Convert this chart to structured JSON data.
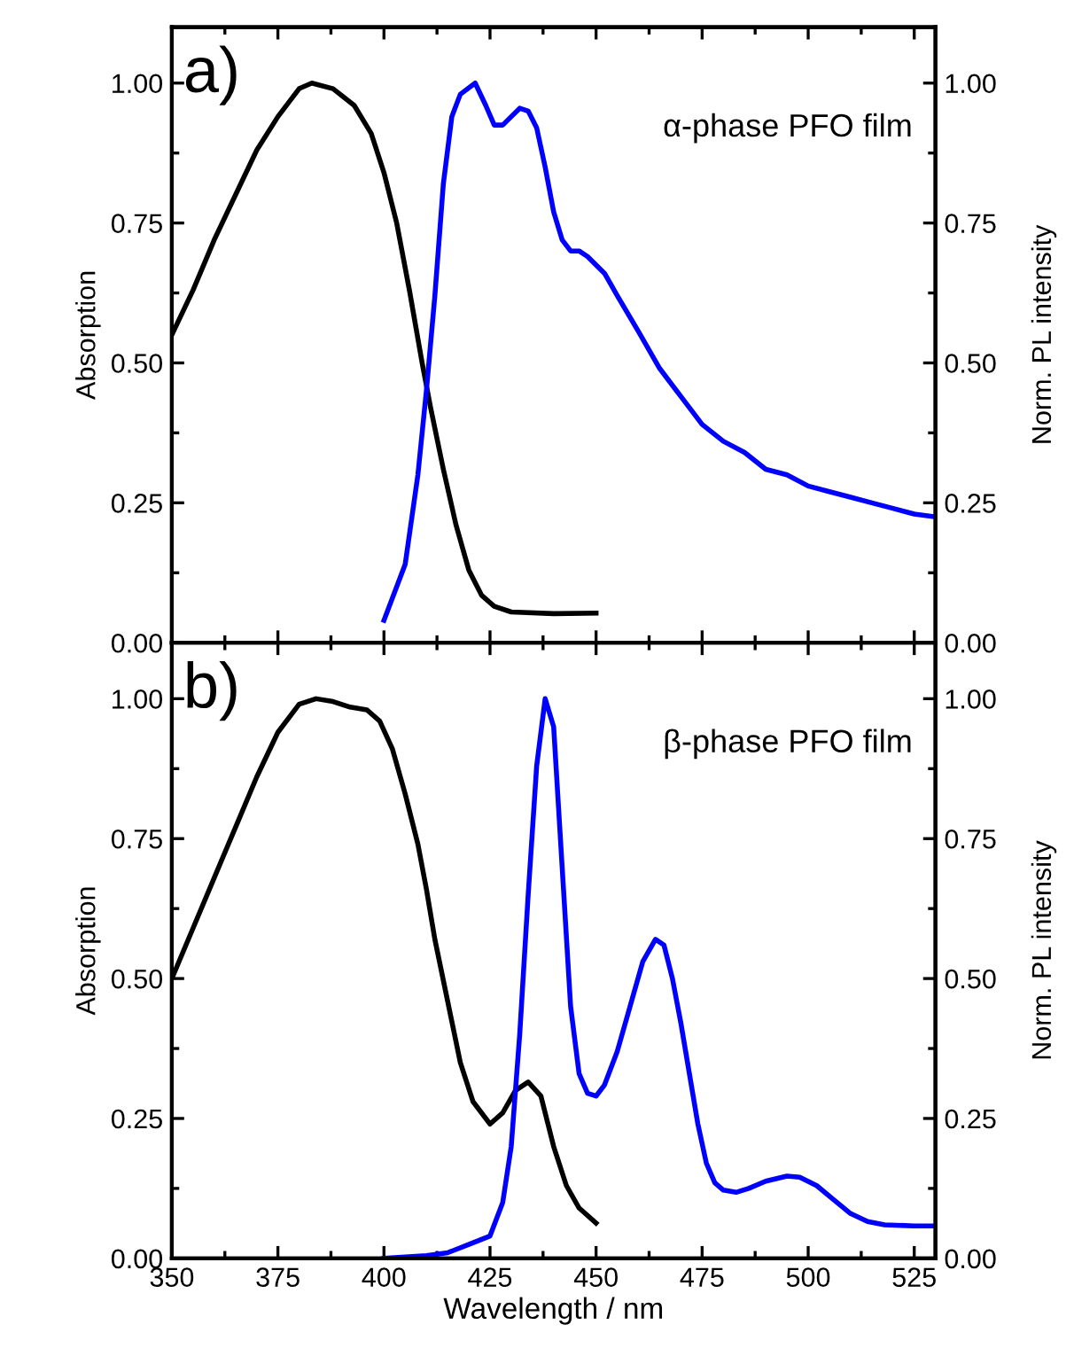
{
  "chart_data": [
    {
      "type": "line",
      "ylabel": "Absorption",
      "y2label": "Norm. PL intensity",
      "annotations": [
        "a)",
        "α-phase PFO film"
      ],
      "xlim": [
        350,
        530
      ],
      "xticks": [
        350,
        375,
        400,
        425,
        450,
        475,
        500,
        525
      ],
      "ylim": [
        0,
        1.1
      ],
      "yticks": [
        {
          "value": 0,
          "label": "0.00"
        },
        {
          "value": 0.25,
          "label": "0.25"
        },
        {
          "value": 0.5,
          "label": "0.50"
        },
        {
          "value": 0.75,
          "label": "0.75"
        },
        {
          "value": 1,
          "label": "1.00"
        }
      ],
      "y2lim": [
        0,
        1.1
      ],
      "y2ticks": [
        {
          "value": 0,
          "label": "0.00"
        },
        {
          "value": 0.25,
          "label": "0.25"
        },
        {
          "value": 0.5,
          "label": "0.50"
        },
        {
          "value": 0.75,
          "label": "0.75"
        },
        {
          "value": 1,
          "label": "1.00"
        }
      ],
      "tick_labels": "y",
      "grid": false,
      "line_style": "solid",
      "marker": "none",
      "series": [
        {
          "color": "#000000",
          "x": [
            350,
            355,
            360,
            365,
            370,
            375,
            380,
            383,
            388,
            393,
            397,
            400,
            403,
            406,
            409,
            411,
            414,
            417,
            420,
            423,
            426,
            430,
            440,
            450
          ],
          "values": [
            0.55,
            0.63,
            0.72,
            0.8,
            0.88,
            0.94,
            0.99,
            1.0,
            0.99,
            0.96,
            0.91,
            0.84,
            0.75,
            0.63,
            0.5,
            0.42,
            0.31,
            0.21,
            0.13,
            0.085,
            0.065,
            0.055,
            0.052,
            0.053
          ]
        },
        {
          "color": "#0000ff",
          "axis": "y2",
          "x": [
            400,
            405,
            408,
            410,
            412,
            414,
            416,
            418,
            421.5,
            424,
            426,
            428,
            430,
            432,
            434,
            436,
            438,
            440,
            442,
            444,
            446,
            448,
            450,
            452,
            455,
            460,
            465,
            470,
            475,
            480,
            485,
            490,
            495,
            500,
            505,
            510,
            515,
            520,
            525,
            530
          ],
          "values": [
            0.04,
            0.14,
            0.3,
            0.45,
            0.62,
            0.82,
            0.94,
            0.98,
            1.0,
            0.96,
            0.925,
            0.925,
            0.94,
            0.955,
            0.95,
            0.92,
            0.85,
            0.77,
            0.72,
            0.7,
            0.7,
            0.69,
            0.675,
            0.66,
            0.62,
            0.556,
            0.49,
            0.44,
            0.39,
            0.36,
            0.34,
            0.31,
            0.3,
            0.28,
            0.27,
            0.26,
            0.25,
            0.24,
            0.23,
            0.225
          ]
        }
      ]
    },
    {
      "type": "line",
      "xlabel": "Wavelength / nm",
      "ylabel": "Absorption",
      "y2label": "Norm. PL intensity",
      "annotations": [
        "b)",
        "β-phase PFO film"
      ],
      "xlim": [
        350,
        530
      ],
      "xticks": [
        350,
        375,
        400,
        425,
        450,
        475,
        500,
        525
      ],
      "ylim": [
        0,
        1.1
      ],
      "yticks": [
        {
          "value": 0,
          "label": "0.00"
        },
        {
          "value": 0.25,
          "label": "0.25"
        },
        {
          "value": 0.5,
          "label": "0.50"
        },
        {
          "value": 0.75,
          "label": "0.75"
        },
        {
          "value": 1,
          "label": "1.00"
        }
      ],
      "y2lim": [
        0,
        1.1
      ],
      "y2ticks": [
        {
          "value": 0,
          "label": "0.00"
        },
        {
          "value": 0.25,
          "label": "0.25"
        },
        {
          "value": 0.5,
          "label": "0.50"
        },
        {
          "value": 0.75,
          "label": "0.75"
        },
        {
          "value": 1,
          "label": "1.00"
        }
      ],
      "grid": false,
      "line_style": "solid",
      "marker": "none",
      "series": [
        {
          "color": "#000000",
          "x": [
            350,
            355,
            360,
            365,
            370,
            375,
            380,
            384,
            388,
            392,
            396,
            399,
            402,
            405,
            408,
            410,
            412,
            415,
            418,
            421,
            425,
            428,
            431,
            434,
            437,
            440,
            443,
            446,
            450
          ],
          "values": [
            0.5,
            0.59,
            0.68,
            0.77,
            0.86,
            0.94,
            0.99,
            1.0,
            0.995,
            0.985,
            0.98,
            0.96,
            0.91,
            0.83,
            0.74,
            0.66,
            0.57,
            0.46,
            0.35,
            0.28,
            0.24,
            0.26,
            0.3,
            0.315,
            0.29,
            0.2,
            0.13,
            0.09,
            0.063
          ]
        },
        {
          "color": "#0000ff",
          "axis": "y2",
          "x": [
            400,
            410,
            415,
            420,
            425,
            428,
            430,
            432,
            434,
            436,
            438,
            440,
            442,
            444,
            446,
            448,
            450,
            452,
            455,
            458,
            461,
            464,
            466,
            468,
            470,
            472,
            474,
            476,
            478,
            480,
            483,
            486,
            490,
            495,
            498,
            502,
            506,
            510,
            514,
            518,
            525,
            530
          ],
          "values": [
            0.0,
            0.005,
            0.01,
            0.025,
            0.04,
            0.1,
            0.2,
            0.4,
            0.65,
            0.88,
            1.0,
            0.95,
            0.7,
            0.45,
            0.33,
            0.295,
            0.29,
            0.31,
            0.37,
            0.45,
            0.53,
            0.57,
            0.56,
            0.5,
            0.42,
            0.33,
            0.24,
            0.17,
            0.135,
            0.122,
            0.118,
            0.125,
            0.138,
            0.147,
            0.145,
            0.13,
            0.105,
            0.08,
            0.066,
            0.06,
            0.058,
            0.058
          ]
        }
      ]
    }
  ]
}
